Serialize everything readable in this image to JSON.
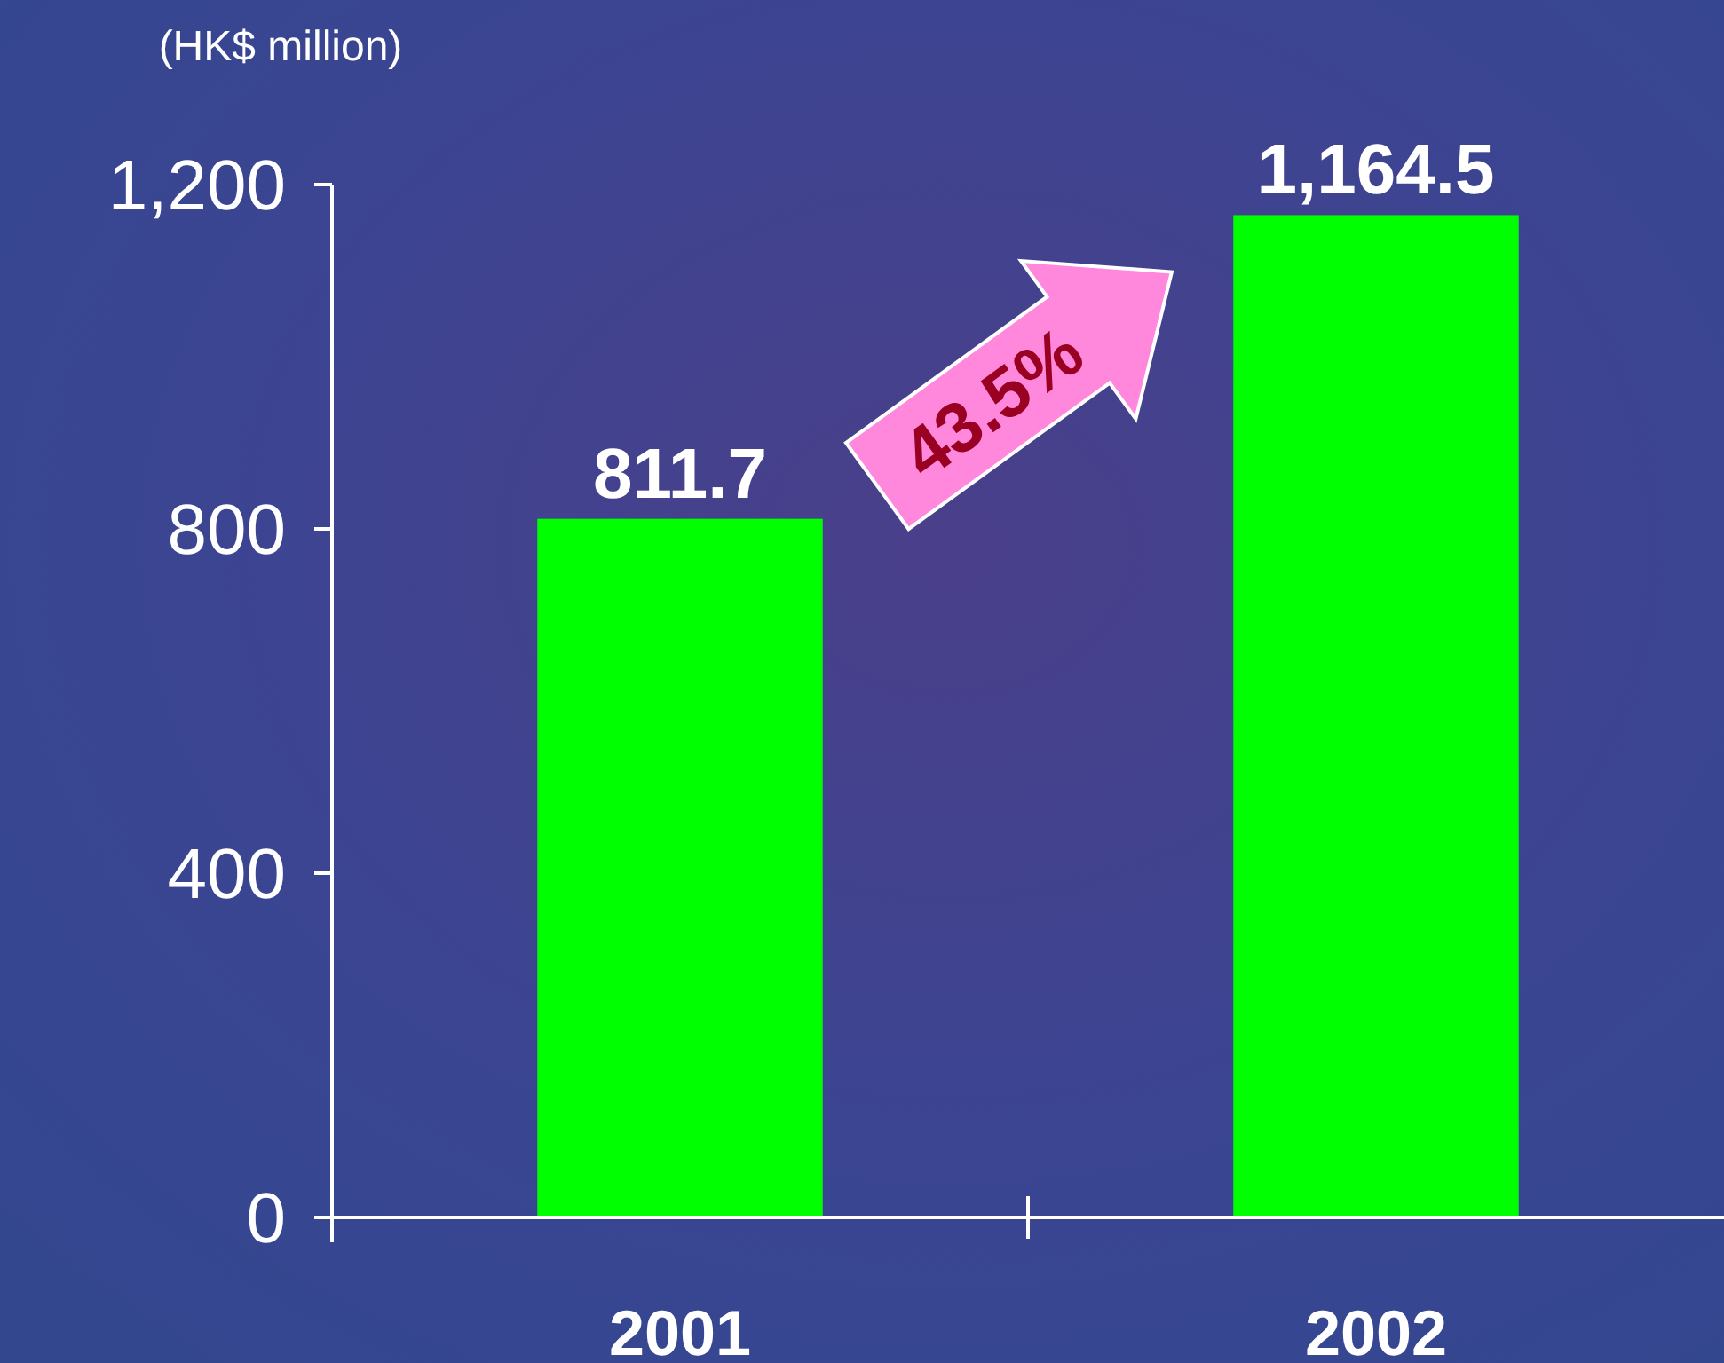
{
  "chart_data": {
    "type": "bar",
    "ylabel": "(HK$ million)",
    "categories": [
      "2001",
      "2002"
    ],
    "values": [
      811.7,
      1164.5
    ],
    "color": "#00ff00",
    "value_labels": [
      "811.7",
      "1,164.5"
    ],
    "ylim": [
      0,
      1200
    ],
    "yticks": [
      0,
      400,
      800,
      {
        "value": 1200,
        "label": "1,200"
      }
    ],
    "grid": false,
    "annotations": [
      "43.5%"
    ]
  }
}
